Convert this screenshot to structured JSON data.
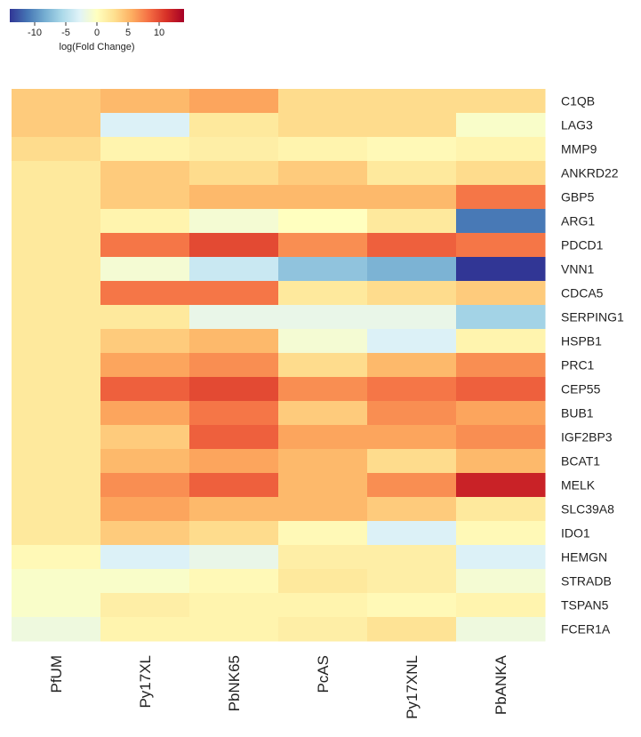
{
  "chart_data": {
    "type": "heatmap",
    "title": "",
    "legend": {
      "title": "log(Fold Change)",
      "range": [
        -14,
        14
      ],
      "ticks": [
        -10,
        -5,
        0,
        5,
        10
      ],
      "tick_labels": [
        "-10",
        "-5",
        "0",
        "5",
        "10"
      ],
      "colors": [
        "#313695",
        "#4575b4",
        "#74add1",
        "#abd9e9",
        "#e0f3f8",
        "#ffffbf",
        "#fee090",
        "#fdae61",
        "#f46d43",
        "#d73027",
        "#a50026"
      ]
    },
    "samples": [
      "PfUM",
      "Py17XL",
      "PbNK65",
      "PcAS",
      "Py17XNL",
      "PbANKA"
    ],
    "genes": [
      "C1QB",
      "LAG3",
      "MMP9",
      "ANKRD22",
      "GBP5",
      "ARG1",
      "PDCD1",
      "VNN1",
      "CDCA5",
      "SERPING1",
      "HSPB1",
      "PRC1",
      "CEP55",
      "BUB1",
      "IGF2BP3",
      "BCAT1",
      "MELK",
      "SLC39A8",
      "IDO1",
      "HEMGN",
      "STRADB",
      "TSPAN5",
      "FCER1A"
    ],
    "values": [
      [
        4,
        5,
        6,
        3,
        3,
        3
      ],
      [
        4,
        -3,
        2,
        3,
        3,
        -0.5
      ],
      [
        3,
        1,
        1.5,
        1,
        0.5,
        1
      ],
      [
        2,
        4,
        3,
        4,
        2,
        3
      ],
      [
        2,
        4,
        5,
        5,
        5,
        8
      ],
      [
        2,
        1,
        -1,
        0,
        2,
        -11
      ],
      [
        2,
        8,
        10,
        7,
        9,
        8
      ],
      [
        2,
        -1,
        -4,
        -7,
        -8,
        -14
      ],
      [
        2,
        8,
        8,
        2,
        3,
        4
      ],
      [
        2,
        2,
        -2,
        -2,
        -2,
        -6
      ],
      [
        2,
        4,
        5,
        -1,
        -3,
        1
      ],
      [
        2,
        6,
        7,
        3,
        5,
        7
      ],
      [
        2,
        9,
        10,
        7,
        8,
        9
      ],
      [
        2,
        6,
        8,
        4,
        7,
        6
      ],
      [
        2,
        4,
        9,
        6,
        6,
        7
      ],
      [
        2,
        5,
        6,
        5,
        3,
        5
      ],
      [
        2,
        7,
        9,
        5,
        7,
        12
      ],
      [
        2,
        6,
        5,
        5,
        4,
        2
      ],
      [
        2,
        4,
        3,
        0.5,
        -3,
        0.5
      ],
      [
        0.5,
        -3,
        -2,
        1.5,
        1.5,
        -3
      ],
      [
        -0.5,
        -0.5,
        0.5,
        2,
        1.5,
        -1
      ],
      [
        -0.5,
        1.5,
        1,
        1,
        0.5,
        1
      ],
      [
        -1.5,
        1,
        1,
        1.5,
        2.5,
        -1.5
      ]
    ]
  }
}
